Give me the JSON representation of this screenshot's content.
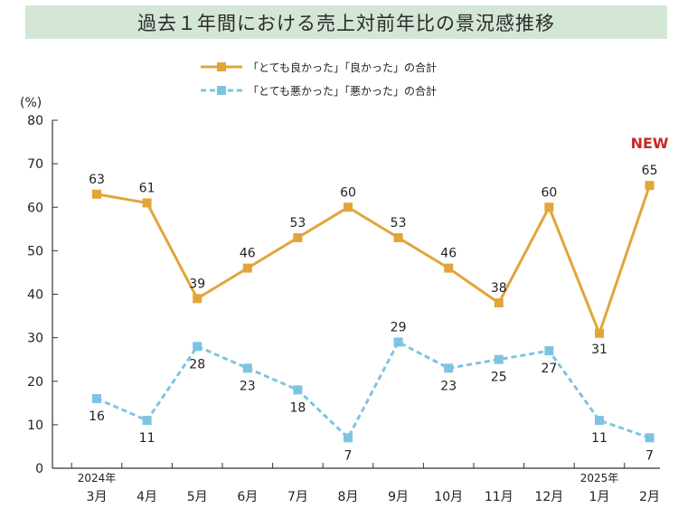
{
  "chart_data": {
    "type": "line",
    "title": "過去１年間における売上対前年比の景況感推移",
    "ylabel": "(%)",
    "ylim": [
      0,
      80
    ],
    "yticks": [
      0,
      10,
      20,
      30,
      40,
      50,
      60,
      70,
      80
    ],
    "categories": [
      "3月",
      "4月",
      "5月",
      "6月",
      "7月",
      "8月",
      "9月",
      "10月",
      "11月",
      "12月",
      "1月",
      "2月"
    ],
    "year_labels": [
      {
        "category_index": 0,
        "label": "2024年"
      },
      {
        "category_index": 10,
        "label": "2025年"
      }
    ],
    "series": [
      {
        "name": "「とても良かった」「良かった」の合計",
        "values": [
          63,
          61,
          39,
          46,
          53,
          60,
          53,
          46,
          38,
          60,
          31,
          65
        ],
        "color": "#e2a53a",
        "style": "solid",
        "labels": [
          "63",
          "61",
          "39",
          "46",
          "53",
          "60",
          "53",
          "46",
          "38",
          "60",
          "31",
          "65"
        ]
      },
      {
        "name": "「とても悪かった」「悪かった」の合計",
        "values": [
          16,
          11,
          28,
          23,
          18,
          7,
          29,
          23,
          25,
          27,
          11,
          7
        ],
        "color": "#7fc3e3",
        "style": "dashed",
        "labels": [
          "16",
          "11",
          "28",
          "23",
          "18",
          "7",
          "29",
          "23",
          "25",
          "27",
          "11",
          "7"
        ]
      }
    ],
    "annotations": [
      {
        "text": "NEW",
        "color": "#c62828",
        "category_index": 11
      }
    ],
    "legend_position": "top-center",
    "grid": false
  }
}
